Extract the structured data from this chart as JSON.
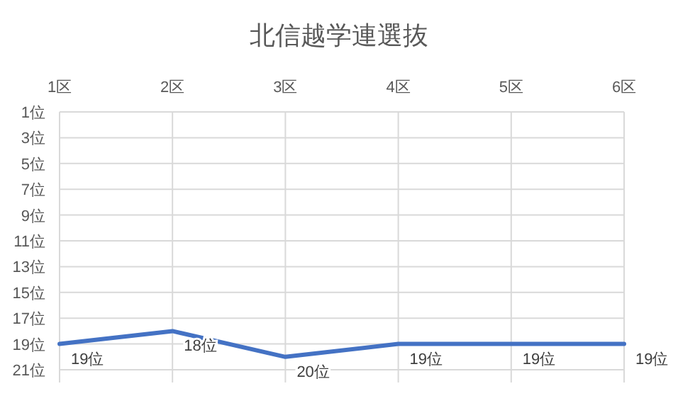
{
  "chart_data": {
    "type": "line",
    "title": "北信越学連選抜",
    "categories": [
      "1区",
      "2区",
      "3区",
      "4区",
      "5区",
      "6区"
    ],
    "series": [
      {
        "color": "#4472c4",
        "values": [
          19,
          18,
          20,
          19,
          19,
          19
        ],
        "value_labels": [
          "19位",
          "18位",
          "20位",
          "19位",
          "19位",
          "19位"
        ]
      }
    ],
    "ylim": [
      21,
      1
    ],
    "yticks": [
      {
        "value": 1,
        "label": "1位"
      },
      {
        "value": 3,
        "label": "3位"
      },
      {
        "value": 5,
        "label": "5位"
      },
      {
        "value": 7,
        "label": "7位"
      },
      {
        "value": 9,
        "label": "9位"
      },
      {
        "value": 11,
        "label": "11位"
      },
      {
        "value": 13,
        "label": "13位"
      },
      {
        "value": 15,
        "label": "15位"
      },
      {
        "value": 17,
        "label": "17位"
      },
      {
        "value": 19,
        "label": "19位"
      },
      {
        "value": 21,
        "label": "21位"
      }
    ],
    "grid": true,
    "marker": "none",
    "line_style": "solid"
  }
}
